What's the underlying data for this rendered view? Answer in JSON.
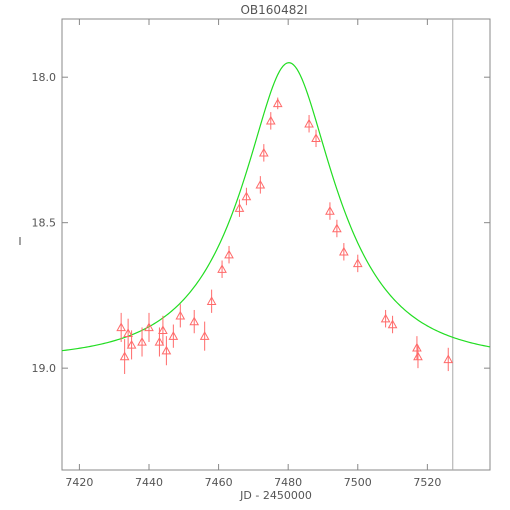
{
  "chart_data": {
    "type": "scatter",
    "title": "OB160482I",
    "xlabel": "JD - 2450000",
    "ylabel": "I",
    "xlim": [
      7415,
      7538
    ],
    "ylim": [
      19.35,
      17.8
    ],
    "y_inverted": true,
    "xticks": [
      7420,
      7440,
      7460,
      7480,
      7500,
      7520
    ],
    "yticks": [
      18.0,
      18.5,
      19.0
    ],
    "ytick_labels": [
      "18.0",
      "18.5",
      "19.0"
    ],
    "grid": false,
    "colors": {
      "data": "#ff6a6a",
      "model": "#22dd22",
      "marker_line": "#aaaaaa",
      "axes": "#888888"
    },
    "marker": "triangle-open",
    "vertical_marker_x": 7527.3,
    "series": [
      {
        "kind": "observations",
        "points": [
          {
            "x": 7432.0,
            "y": 18.86,
            "err": 0.05
          },
          {
            "x": 7433.0,
            "y": 18.96,
            "err": 0.06
          },
          {
            "x": 7434.0,
            "y": 18.88,
            "err": 0.05
          },
          {
            "x": 7435.0,
            "y": 18.92,
            "err": 0.05
          },
          {
            "x": 7438.0,
            "y": 18.91,
            "err": 0.05
          },
          {
            "x": 7440.0,
            "y": 18.86,
            "err": 0.05
          },
          {
            "x": 7443.0,
            "y": 18.91,
            "err": 0.05
          },
          {
            "x": 7444.0,
            "y": 18.87,
            "err": 0.05
          },
          {
            "x": 7445.0,
            "y": 18.94,
            "err": 0.05
          },
          {
            "x": 7447.0,
            "y": 18.89,
            "err": 0.04
          },
          {
            "x": 7449.0,
            "y": 18.82,
            "err": 0.04
          },
          {
            "x": 7453.0,
            "y": 18.84,
            "err": 0.04
          },
          {
            "x": 7456.0,
            "y": 18.89,
            "err": 0.05
          },
          {
            "x": 7458.0,
            "y": 18.77,
            "err": 0.04
          },
          {
            "x": 7461.0,
            "y": 18.66,
            "err": 0.03
          },
          {
            "x": 7463.0,
            "y": 18.61,
            "err": 0.03
          },
          {
            "x": 7466.0,
            "y": 18.45,
            "err": 0.03
          },
          {
            "x": 7468.0,
            "y": 18.41,
            "err": 0.03
          },
          {
            "x": 7472.0,
            "y": 18.37,
            "err": 0.03
          },
          {
            "x": 7473.0,
            "y": 18.26,
            "err": 0.03
          },
          {
            "x": 7475.0,
            "y": 18.15,
            "err": 0.03
          },
          {
            "x": 7477.0,
            "y": 18.09,
            "err": 0.02
          },
          {
            "x": 7486.0,
            "y": 18.16,
            "err": 0.03
          },
          {
            "x": 7488.0,
            "y": 18.21,
            "err": 0.03
          },
          {
            "x": 7492.0,
            "y": 18.46,
            "err": 0.03
          },
          {
            "x": 7494.0,
            "y": 18.52,
            "err": 0.03
          },
          {
            "x": 7496.0,
            "y": 18.6,
            "err": 0.03
          },
          {
            "x": 7500.0,
            "y": 18.64,
            "err": 0.03
          },
          {
            "x": 7508.0,
            "y": 18.83,
            "err": 0.03
          },
          {
            "x": 7510.0,
            "y": 18.85,
            "err": 0.03
          },
          {
            "x": 7517.0,
            "y": 18.93,
            "err": 0.04
          },
          {
            "x": 7517.3,
            "y": 18.96,
            "err": 0.04
          },
          {
            "x": 7526.0,
            "y": 18.97,
            "err": 0.04
          }
        ]
      },
      {
        "kind": "model",
        "model_params": {
          "t0": 7480.2,
          "u0": 0.41,
          "tE": 25.8,
          "baseline": 18.97
        }
      }
    ]
  }
}
